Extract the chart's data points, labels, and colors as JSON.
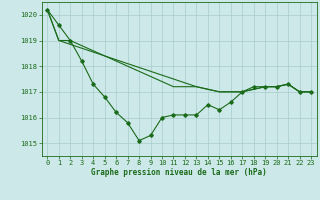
{
  "title": "Graphe pression niveau de la mer (hPa)",
  "background_color": "#cde8e8",
  "grid_color": "#a8cccc",
  "line_color": "#1a6b1a",
  "xlim": [
    -0.5,
    23.5
  ],
  "ylim": [
    1014.5,
    1020.5
  ],
  "yticks": [
    1015,
    1016,
    1017,
    1018,
    1019,
    1020
  ],
  "xticks": [
    0,
    1,
    2,
    3,
    4,
    5,
    6,
    7,
    8,
    9,
    10,
    11,
    12,
    13,
    14,
    15,
    16,
    17,
    18,
    19,
    20,
    21,
    22,
    23
  ],
  "series_main": [
    1020.2,
    1019.6,
    1019.0,
    1018.2,
    1017.3,
    1016.8,
    1016.2,
    1015.8,
    1015.1,
    1015.3,
    1016.0,
    1016.1,
    1016.1,
    1016.1,
    1016.5,
    1016.3,
    1016.6,
    1017.0,
    1017.2,
    1017.2,
    1017.2,
    1017.3,
    1017.0,
    1017.0
  ],
  "series_line1": [
    1020.2,
    1019.0,
    1018.85,
    1018.7,
    1018.55,
    1018.4,
    1018.25,
    1018.1,
    1017.95,
    1017.8,
    1017.65,
    1017.5,
    1017.35,
    1017.2,
    1017.1,
    1017.0,
    1017.0,
    1017.0,
    1017.1,
    1017.2,
    1017.2,
    1017.3,
    1017.0,
    1017.0
  ],
  "series_line2": [
    1020.2,
    1019.0,
    1019.0,
    1018.8,
    1018.6,
    1018.4,
    1018.2,
    1018.0,
    1017.8,
    1017.6,
    1017.4,
    1017.2,
    1017.2,
    1017.2,
    1017.1,
    1017.0,
    1017.0,
    1017.0,
    1017.1,
    1017.2,
    1017.2,
    1017.3,
    1017.0,
    1017.0
  ]
}
